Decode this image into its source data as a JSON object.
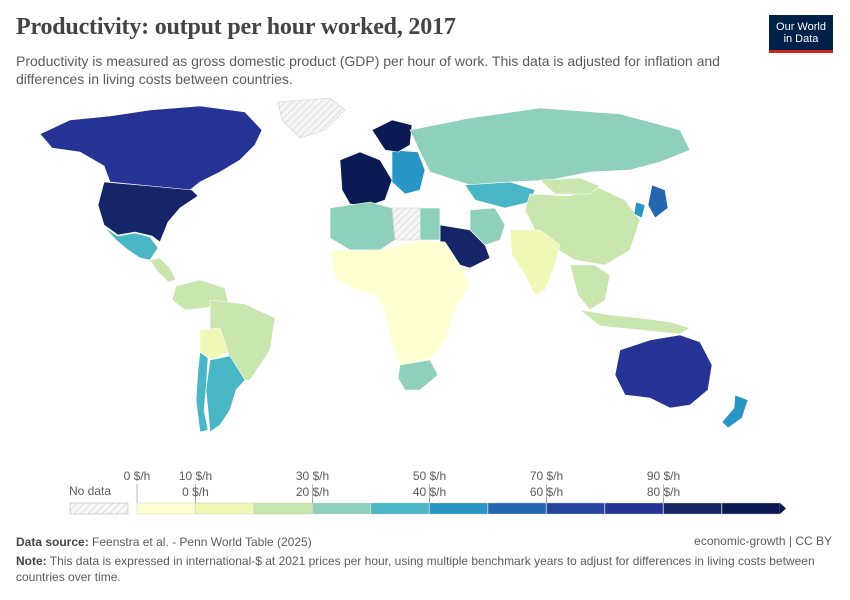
{
  "header": {
    "title": "Productivity: output per hour worked, 2017",
    "subtitle": "Productivity is measured as gross domestic product (GDP) per hour of work. This data is adjusted for inflation and differences in living costs between countries.",
    "logo_line1": "Our World",
    "logo_line2": "in Data"
  },
  "legend": {
    "no_data_label": "No data",
    "upper_ticks": [
      "0 $/h",
      "10 $/h",
      "30 $/h",
      "50 $/h",
      "70 $/h",
      "90 $/h"
    ],
    "lower_ticks": [
      "0 $/h",
      "20 $/h",
      "40 $/h",
      "60 $/h",
      "80 $/h"
    ],
    "bins": [
      {
        "color": "#ffffd2"
      },
      {
        "color": "#f1f7b5"
      },
      {
        "color": "#c8e6ae"
      },
      {
        "color": "#8fd0bd"
      },
      {
        "color": "#49b6c6"
      },
      {
        "color": "#2896c4"
      },
      {
        "color": "#2467ae"
      },
      {
        "color": "#26459f"
      },
      {
        "color": "#253494"
      },
      {
        "color": "#152567"
      },
      {
        "color": "#0b1a52"
      }
    ],
    "no_data_color": "#eeeeee"
  },
  "regions": [
    {
      "name": "Canada",
      "bin": 8
    },
    {
      "name": "United States",
      "bin": 9
    },
    {
      "name": "Mexico",
      "bin": 4
    },
    {
      "name": "Central America",
      "bin": 2
    },
    {
      "name": "South America north",
      "bin": 2
    },
    {
      "name": "Brazil",
      "bin": 2
    },
    {
      "name": "Bolivia",
      "bin": 1
    },
    {
      "name": "Chile",
      "bin": 4
    },
    {
      "name": "Argentina",
      "bin": 4
    },
    {
      "name": "Greenland",
      "bin": -1
    },
    {
      "name": "Western Europe",
      "bin": 10
    },
    {
      "name": "Eastern Europe",
      "bin": 5
    },
    {
      "name": "Scandinavia",
      "bin": 10
    },
    {
      "name": "Russia",
      "bin": 3
    },
    {
      "name": "Kazakhstan",
      "bin": 4
    },
    {
      "name": "China",
      "bin": 2
    },
    {
      "name": "Mongolia",
      "bin": 2
    },
    {
      "name": "India",
      "bin": 1
    },
    {
      "name": "Southeast Asia",
      "bin": 2
    },
    {
      "name": "Japan",
      "bin": 6
    },
    {
      "name": "Korea",
      "bin": 5
    },
    {
      "name": "Saudi Arabia",
      "bin": 9
    },
    {
      "name": "Iran",
      "bin": 3
    },
    {
      "name": "North Africa west",
      "bin": 3
    },
    {
      "name": "Libya",
      "bin": -1
    },
    {
      "name": "Egypt",
      "bin": 3
    },
    {
      "name": "Sub-Saharan Africa",
      "bin": 0
    },
    {
      "name": "South Africa",
      "bin": 3
    },
    {
      "name": "Australia",
      "bin": 8
    },
    {
      "name": "New Zealand",
      "bin": 5
    },
    {
      "name": "Indonesia",
      "bin": 2
    }
  ],
  "footer": {
    "source_label": "Data source:",
    "source_text": "Feenstra et al. - Penn World Table (2025)",
    "right_text": "economic-growth | CC BY",
    "note_label": "Note:",
    "note_text": "This data is expressed in international-$ at 2021 prices per hour, using multiple benchmark years to adjust for differences in living costs between countries over time."
  }
}
